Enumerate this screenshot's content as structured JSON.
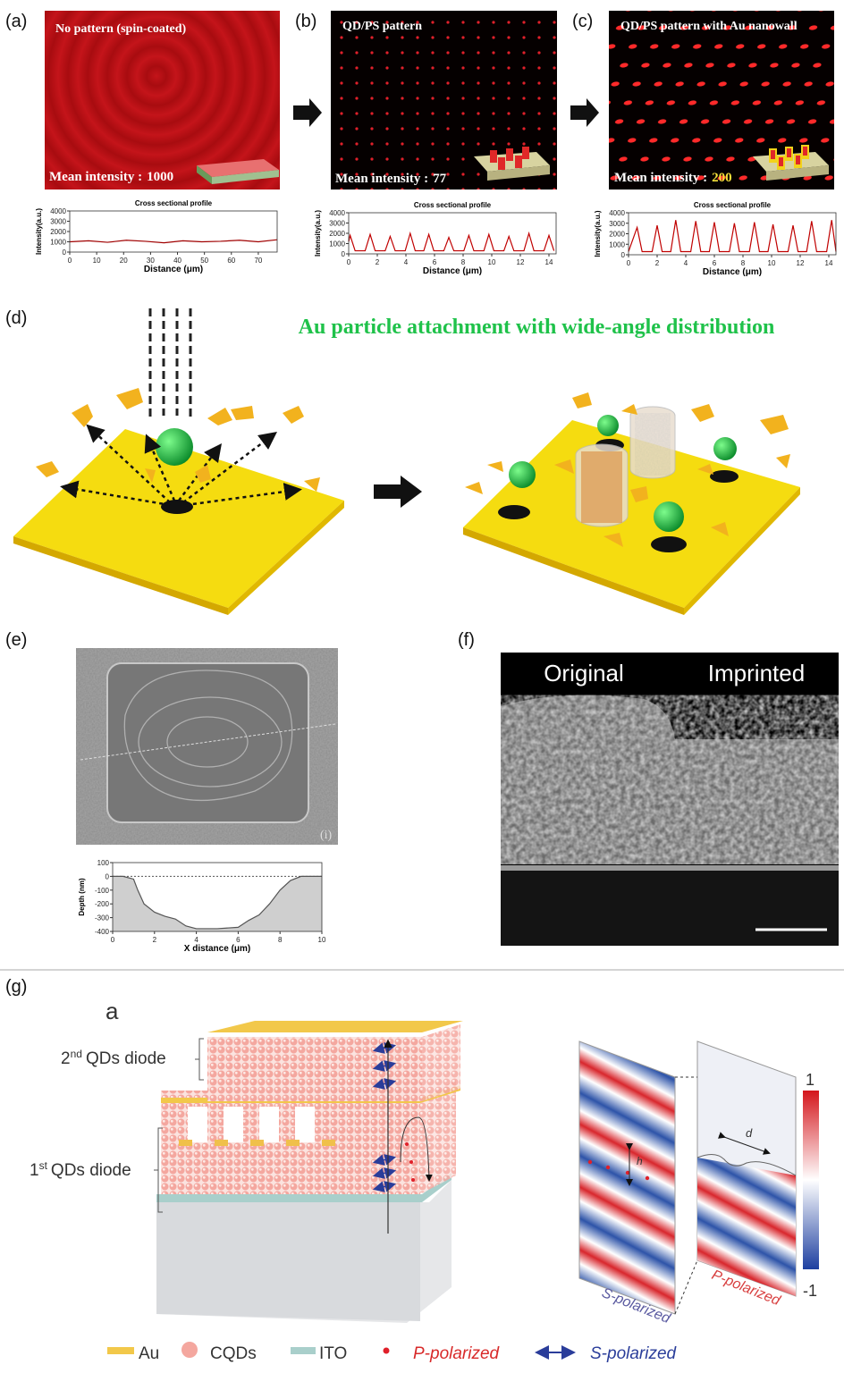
{
  "panels": {
    "a": {
      "label": "(a)",
      "image_title": "No pattern (spin-coated)",
      "mean_label": "Mean intensity :",
      "mean_value": "1000",
      "profile": {
        "type": "line",
        "title": "Cross sectional profile",
        "xlabel": "Distance (μm)",
        "ylabel": "Intensity(a.u.)",
        "color": "#a00000",
        "x": [
          0,
          7,
          14,
          21,
          28,
          35,
          42,
          49,
          56,
          63,
          70,
          77
        ],
        "values": [
          1000,
          1100,
          950,
          1150,
          1050,
          900,
          1100,
          1000,
          1050,
          1150,
          1000,
          1200
        ],
        "xlim": [
          0,
          77
        ],
        "ylim": [
          0,
          4000
        ],
        "xticks": [
          0,
          10,
          20,
          30,
          40,
          50,
          60,
          70
        ],
        "yticks": [
          0,
          1000,
          2000,
          3000,
          4000
        ]
      }
    },
    "b": {
      "label": "(b)",
      "image_title": "QD/PS pattern",
      "mean_label": "Mean intensity :",
      "mean_value": "77",
      "profile": {
        "type": "line",
        "title": "Cross sectional profile",
        "xlabel": "Distance (μm)",
        "ylabel": "Intensity(a.u.)",
        "color": "#c00000",
        "x": [
          0,
          0.1,
          0.45,
          1.15,
          1.5,
          1.85,
          2.55,
          2.9,
          3.25,
          3.95,
          4.3,
          4.65,
          5.25,
          5.6,
          5.95,
          6.65,
          7.0,
          7.35,
          8.05,
          8.4,
          8.75,
          9.45,
          9.8,
          10.15,
          10.85,
          11.2,
          11.55,
          12.25,
          12.6,
          12.95,
          13.65,
          14.0,
          14.35
        ],
        "values": [
          1200,
          1800,
          300,
          300,
          1900,
          300,
          300,
          1700,
          300,
          300,
          2000,
          300,
          300,
          1900,
          300,
          300,
          1600,
          300,
          300,
          1800,
          300,
          300,
          1900,
          300,
          300,
          1700,
          300,
          300,
          2000,
          300,
          300,
          1800,
          300
        ],
        "xlim": [
          0,
          14.5
        ],
        "ylim": [
          0,
          4000
        ],
        "xticks": [
          0,
          2,
          4,
          6,
          8,
          10,
          12,
          14
        ],
        "yticks": [
          0,
          1000,
          2000,
          3000,
          4000
        ]
      }
    },
    "c": {
      "label": "(c)",
      "image_title": "QD/PS pattern with Au nanowall",
      "mean_label": "Mean intensity :",
      "mean_value": "200",
      "profile": {
        "type": "line",
        "title": "Cross sectional profile",
        "xlabel": "Distance (μm)",
        "ylabel": "Intensity(a.u.)",
        "color": "#c00000",
        "x": [
          0,
          0.6,
          0.95,
          1.65,
          2.0,
          2.35,
          2.95,
          3.3,
          3.65,
          4.35,
          4.7,
          5.05,
          5.65,
          6.0,
          6.35,
          7.05,
          7.4,
          7.75,
          8.45,
          8.8,
          9.15,
          9.75,
          10.1,
          10.45,
          11.15,
          11.5,
          11.85,
          12.45,
          12.8,
          13.15,
          13.85,
          14.2,
          14.5
        ],
        "values": [
          300,
          2600,
          300,
          300,
          2800,
          300,
          300,
          3300,
          300,
          300,
          3200,
          300,
          300,
          3100,
          300,
          300,
          3000,
          300,
          300,
          3100,
          300,
          300,
          2900,
          300,
          300,
          2800,
          300,
          300,
          3200,
          300,
          300,
          3300,
          300
        ],
        "xlim": [
          0,
          14.5
        ],
        "ylim": [
          0,
          4000
        ],
        "xticks": [
          0,
          2,
          4,
          6,
          8,
          10,
          12,
          14
        ],
        "yticks": [
          0,
          1000,
          2000,
          3000,
          4000
        ]
      }
    },
    "d": {
      "label": "(d)",
      "title": "Au particle attachment with wide-angle distribution"
    },
    "e": {
      "label": "(e)",
      "inset_label": "(i)",
      "profile": {
        "type": "area",
        "xlabel": "X distance (μm)",
        "ylabel": "Depth (nm)",
        "color": "#555555",
        "fill": "#cfcfcf",
        "zero_line": true,
        "x": [
          0,
          0.5,
          1,
          1.2,
          1.5,
          2,
          2.5,
          3,
          3.5,
          4,
          5,
          6,
          6.5,
          7,
          7.5,
          8,
          8.5,
          9,
          10
        ],
        "values": [
          0,
          0,
          -20,
          -100,
          -200,
          -260,
          -290,
          -310,
          -360,
          -380,
          -380,
          -370,
          -320,
          -280,
          -200,
          -100,
          -30,
          0,
          0
        ],
        "xlim": [
          0,
          10
        ],
        "ylim": [
          -400,
          100
        ],
        "xticks": [
          0,
          2,
          4,
          6,
          8,
          10
        ],
        "yticks": [
          100,
          0,
          -100,
          -200,
          -300,
          -400
        ]
      }
    },
    "f": {
      "label": "(f)",
      "left_label": "Original",
      "right_label": "Imprinted"
    },
    "g": {
      "label": "(g)",
      "sub_label": "a",
      "diode_2": {
        "base": "2",
        "sup": "nd",
        "rest": "QDs diode"
      },
      "diode_1": {
        "base": "1",
        "sup": "st",
        "rest": "QDs diode"
      },
      "h_label": "h",
      "d_label": "d",
      "s_panel": "S-polarized",
      "p_panel": "P-polarized",
      "colorbar_top": "1",
      "colorbar_bottom": "-1",
      "legend": [
        "Au",
        "CQDs",
        "ITO",
        "P-polarized",
        "S-polarized"
      ]
    }
  }
}
